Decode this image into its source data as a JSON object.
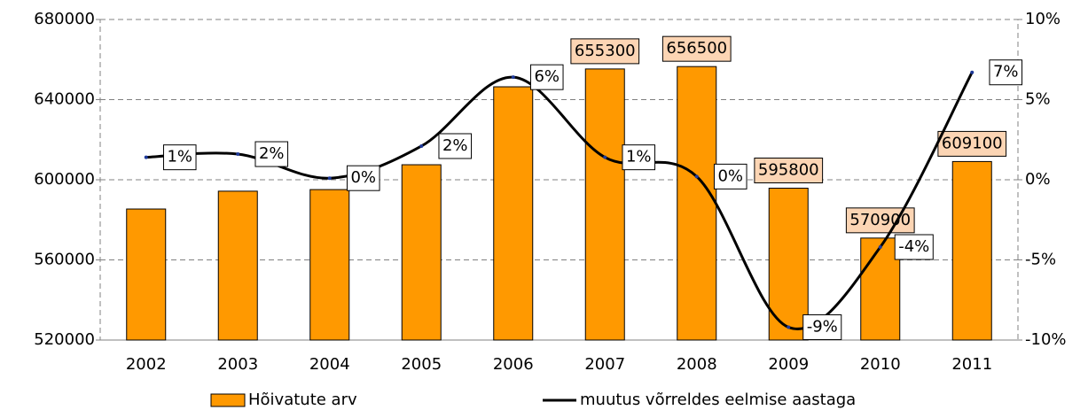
{
  "chart_data": {
    "type": "bar+line",
    "categories": [
      "2002",
      "2003",
      "2004",
      "2005",
      "2006",
      "2007",
      "2008",
      "2009",
      "2010",
      "2011"
    ],
    "series": [
      {
        "name": "Hõivatute arv",
        "type": "bar",
        "color": "#ff9900",
        "values": [
          585400,
          594300,
          595100,
          607500,
          646400,
          655300,
          656500,
          595800,
          570900,
          609100
        ],
        "value_labels": [
          null,
          null,
          null,
          null,
          null,
          "655300",
          "656500",
          "595800",
          "570900",
          "609100"
        ]
      },
      {
        "name": "muutus võrreldes eelmise aastaga",
        "type": "line",
        "axis": "y2",
        "color": "#000000",
        "values": [
          1.4,
          1.6,
          0.1,
          2.1,
          6.4,
          1.4,
          0.2,
          -9.2,
          -4.2,
          6.7
        ],
        "value_labels": [
          "1%",
          "2%",
          "0%",
          "2%",
          "6%",
          "1%",
          "0%",
          "-9%",
          "-4%",
          "7%"
        ]
      }
    ],
    "ylim": [
      520000,
      680000
    ],
    "yticks": [
      520000,
      560000,
      600000,
      640000,
      680000
    ],
    "y2lim": [
      -10,
      10
    ],
    "y2ticks": [
      {
        "value": -10,
        "label": "-10%"
      },
      {
        "value": -5,
        "label": "-5%"
      },
      {
        "value": 0,
        "label": "0%"
      },
      {
        "value": 5,
        "label": "5%"
      },
      {
        "value": 10,
        "label": "10%"
      }
    ],
    "grid": true,
    "legend": "bottom"
  }
}
